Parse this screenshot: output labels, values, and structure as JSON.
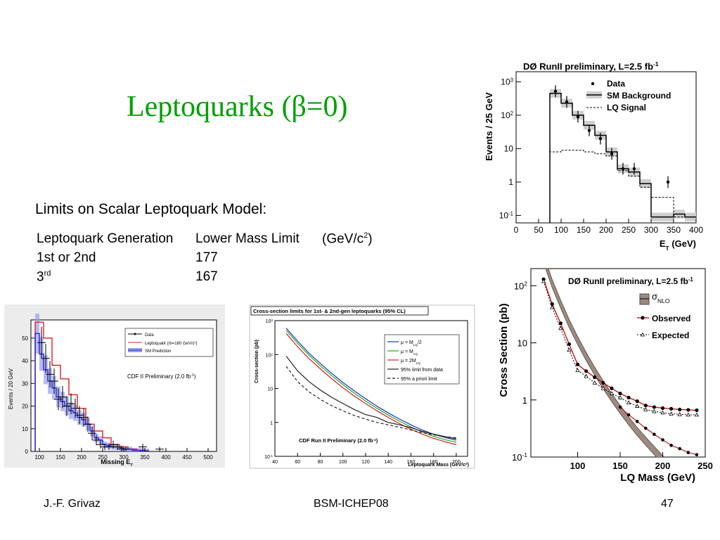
{
  "slide": {
    "title": "Leptoquarks (β=0)",
    "limits_heading": "Limits on Scalar Leptoquark Model:",
    "table": {
      "headers": [
        "Leptoquark Generation",
        "Lower Mass Limit",
        "(GeV/c",
        "2",
        ")"
      ],
      "rows": [
        {
          "gen": "1st or 2nd",
          "sup": "",
          "limit": "177"
        },
        {
          "gen": "3",
          "sup": "rd",
          "limit": "167"
        }
      ]
    },
    "footer": {
      "author": "J.-F. Grivaz",
      "conference": "BSM-ICHEP08",
      "page": "47"
    }
  },
  "colors": {
    "title": "#00a000",
    "cdf_lq": "#e02020",
    "cdf_sm": "#2020e0",
    "d0_lq_observed": "#cc0000",
    "band": "#9a8a80"
  },
  "chart_data": [
    {
      "id": "d0-met",
      "type": "bar",
      "title": "DØ RunII preliminary, L=2.5 fb",
      "title_sup": "-1",
      "xlabel": "E",
      "xlabel_sub": "T",
      "xlabel_unit": "(GeV)",
      "ylabel": "Events / 25 GeV",
      "xlim": [
        0,
        400
      ],
      "ylim": [
        0.06,
        2000
      ],
      "yscale": "log",
      "xticks": [
        "0",
        "50",
        "100",
        "150",
        "200",
        "250",
        "300",
        "350",
        "400"
      ],
      "yticks": [
        {
          "v": 1000,
          "b": "10",
          "s": "3"
        },
        {
          "v": 100,
          "b": "10",
          "s": "2"
        },
        {
          "v": 10,
          "b": "10",
          "s": ""
        },
        {
          "v": 1,
          "b": "1",
          "s": ""
        },
        {
          "v": 0.1,
          "b": "10",
          "s": "-1"
        }
      ],
      "legend": [
        "Data",
        "SM Background",
        "LQ Signal"
      ],
      "legend_position": "top-right",
      "bin_edges": [
        75,
        100,
        125,
        150,
        175,
        200,
        225,
        250,
        275,
        300,
        325,
        350,
        375,
        400
      ],
      "sm_background": [
        450,
        230,
        100,
        50,
        25,
        8,
        2.5,
        2,
        0.9,
        0.09,
        0.09,
        0.11,
        0.09
      ],
      "lq_signal": [
        8,
        9,
        9,
        8,
        7,
        6,
        2.2,
        1.5,
        0.7,
        0.35,
        0.35,
        0.09,
        0.09
      ],
      "data": {
        "x": [
          87.5,
          112.5,
          137.5,
          162.5,
          187.5,
          212.5,
          237.5,
          262.5,
          337.5
        ],
        "y": [
          520,
          250,
          90,
          35,
          20,
          7,
          2.5,
          2.5,
          1
        ]
      }
    },
    {
      "id": "cdf-met",
      "type": "bar",
      "title": "CDF II Preliminary (2.0 fb",
      "title_sup": "-1",
      "xlabel": "Missing E",
      "xlabel_sub": "T",
      "xlabel_unit": "",
      "ylabel": "Events / 20 GeV",
      "xlim": [
        80,
        520
      ],
      "ylim": [
        0,
        58
      ],
      "xticks": [
        "100",
        "150",
        "200",
        "250",
        "300",
        "350",
        "400",
        "450",
        "500"
      ],
      "yticks": [
        "0",
        "10",
        "20",
        "30",
        "40",
        "50"
      ],
      "legend": [
        "Data",
        "Leptoquark (m=180 GeV/c²)",
        "SM Prediction"
      ],
      "legend_position": "top-right",
      "bin_edges": [
        90,
        100,
        110,
        120,
        130,
        140,
        150,
        160,
        170,
        180,
        190,
        200,
        210,
        220,
        230,
        240,
        250,
        260,
        270,
        280,
        290,
        300,
        310,
        320,
        330,
        340,
        350,
        360
      ],
      "leptoquark": [
        57,
        57,
        50,
        50,
        38,
        38,
        32,
        32,
        25,
        25,
        19,
        19,
        12,
        12,
        9,
        9,
        6,
        6,
        3,
        3,
        2,
        2,
        1,
        1,
        0.5,
        0.5,
        0.3
      ],
      "sm_prediction": [
        52,
        43,
        36,
        31,
        28,
        24,
        22,
        20,
        18,
        17,
        15,
        14,
        12,
        9,
        6,
        5,
        3,
        2.5,
        2,
        2,
        1.5,
        1,
        1,
        0.5,
        0.5,
        0.3,
        0.2
      ],
      "data": {
        "x": [
          105,
          115,
          125,
          135,
          145,
          155,
          165,
          175,
          185,
          195,
          205,
          215,
          225,
          235,
          245,
          255,
          265,
          275,
          285,
          295,
          305,
          345,
          385
        ],
        "y": [
          48,
          41,
          34,
          31,
          23,
          24,
          20,
          21,
          19,
          16,
          15,
          12,
          8,
          5,
          3,
          2,
          2,
          3,
          2,
          1,
          1,
          2,
          1
        ]
      }
    },
    {
      "id": "cdf-xsec",
      "type": "line",
      "header": "Cross-section limits for 1st- & 2nd-gen leptoquarks (95% CL)",
      "annotation": "CDF Run II Preliminary (2.0 fb",
      "annotation_sup": "-1",
      "xlabel": "Leptoquark Mass (GeV/c",
      "xlabel_sup": "2",
      "ylabel": "Cross-section (pb)",
      "xlim": [
        40,
        210
      ],
      "ylim": [
        0.1,
        1000
      ],
      "yscale": "log",
      "xticks": [
        "40",
        "60",
        "80",
        "100",
        "120",
        "140",
        "160",
        "180",
        "200"
      ],
      "yticks": [
        {
          "v": 1000,
          "b": "10",
          "s": "3"
        },
        {
          "v": 100,
          "b": "10",
          "s": "2"
        },
        {
          "v": 10,
          "b": "10",
          "s": ""
        },
        {
          "v": 1,
          "b": "1",
          "s": ""
        },
        {
          "v": 0.1,
          "b": "10",
          "s": "-1"
        }
      ],
      "legend": [
        "μ = M",
        "μ = M",
        "μ = 2M",
        "95% limit from data",
        "95% a priori limit"
      ],
      "legend_subs": [
        "LQ",
        "LQ",
        "LQ",
        "",
        ""
      ],
      "legend_suffix": [
        "/2",
        "",
        "",
        "",
        ""
      ],
      "legend_position": "top-right",
      "x": [
        50,
        60,
        70,
        80,
        90,
        100,
        110,
        120,
        130,
        140,
        150,
        160,
        170,
        180,
        190,
        200
      ],
      "series": [
        {
          "color": "#1a33cc",
          "dash": "",
          "values": [
            600,
            250,
            110,
            55,
            28,
            15,
            8.5,
            5,
            3,
            1.9,
            1.25,
            0.85,
            0.6,
            0.45,
            0.36,
            0.3
          ]
        },
        {
          "color": "#22aa22",
          "dash": "",
          "values": [
            520,
            215,
            95,
            47,
            24,
            13,
            7.3,
            4.3,
            2.6,
            1.65,
            1.08,
            0.74,
            0.52,
            0.39,
            0.31,
            0.26
          ]
        },
        {
          "color": "#d42020",
          "dash": "",
          "values": [
            420,
            170,
            76,
            38,
            19.5,
            10.5,
            6,
            3.6,
            2.2,
            1.4,
            0.92,
            0.63,
            0.45,
            0.34,
            0.27,
            0.22
          ]
        },
        {
          "color": "#222222",
          "dash": "",
          "values": [
            90,
            33,
            16,
            9,
            5.5,
            3.6,
            2.4,
            1.7,
            1.4,
            1.0,
            0.85,
            0.7,
            0.55,
            0.45,
            0.38,
            0.33
          ]
        },
        {
          "color": "#222222",
          "dash": "4,3",
          "values": [
            45,
            16,
            8,
            4.8,
            3.1,
            2.2,
            1.6,
            1.25,
            1.0,
            0.85,
            0.72,
            0.6,
            0.5,
            0.43,
            0.38,
            0.35
          ]
        }
      ]
    },
    {
      "id": "d0-xsec",
      "type": "line",
      "title": "DØ RunII preliminary, L=2.5 fb",
      "title_sup": "-1",
      "xlabel": "LQ Mass (GeV)",
      "ylabel": "Cross Section (pb)",
      "xlim": [
        45,
        250
      ],
      "ylim": [
        0.1,
        200
      ],
      "yscale": "log",
      "xticks": [
        "100",
        "150",
        "200",
        "250"
      ],
      "yticks": [
        {
          "v": 100,
          "b": "10",
          "s": "2"
        },
        {
          "v": 10,
          "b": "10",
          "s": ""
        },
        {
          "v": 1,
          "b": "1",
          "s": ""
        },
        {
          "v": 0.1,
          "b": "10",
          "s": "-1"
        }
      ],
      "legend": [
        "σ",
        "Observed",
        "Expected"
      ],
      "legend_subs": [
        "NLO",
        "",
        ""
      ],
      "legend_position": "top-right",
      "x": [
        60,
        70,
        80,
        90,
        100,
        110,
        120,
        130,
        140,
        150,
        160,
        170,
        180,
        190,
        200,
        210,
        220,
        230,
        240
      ],
      "sigma_nlo": [
        300,
        110,
        48,
        22,
        11,
        5.8,
        3.2,
        1.85,
        1.1,
        0.68,
        0.43,
        0.28,
        0.19,
        0.13,
        0.09,
        0.065,
        0.048,
        0.036,
        0.027
      ],
      "observed": [
        130,
        48,
        22,
        9.5,
        4.2,
        3.2,
        2.5,
        2.0,
        1.6,
        1.3,
        1.1,
        0.95,
        0.8,
        0.75,
        0.72,
        0.7,
        0.68,
        0.67,
        0.66
      ],
      "expected": [
        120,
        42,
        18,
        7.5,
        3.3,
        2.6,
        2.0,
        1.6,
        1.3,
        1.1,
        0.9,
        0.78,
        0.68,
        0.63,
        0.6,
        0.57,
        0.56,
        0.55,
        0.55
      ],
      "observed_lower": [
        null,
        null,
        null,
        null,
        null,
        null,
        null,
        null,
        null,
        0.75,
        0.55,
        0.42,
        0.32,
        0.25,
        0.2,
        0.16,
        0.14,
        0.12,
        0.11
      ]
    }
  ]
}
